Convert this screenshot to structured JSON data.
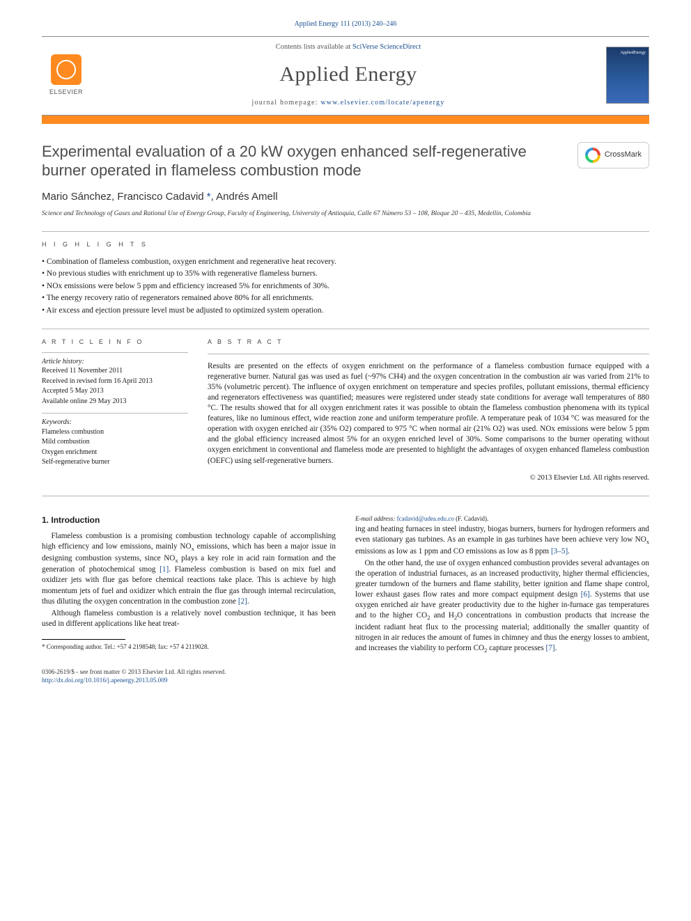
{
  "citation": "Applied Energy 111 (2013) 240–246",
  "header": {
    "contents_prefix": "Contents lists available at ",
    "contents_link": "SciVerse ScienceDirect",
    "journal": "Applied Energy",
    "homepage_prefix": "journal homepage: ",
    "homepage_url": "www.elsevier.com/locate/apenergy",
    "publisher": "ELSEVIER",
    "cover_label": "AppliedEnergy"
  },
  "crossmark_label": "CrossMark",
  "title": "Experimental evaluation of a 20 kW oxygen enhanced self-regenerative burner operated in flameless combustion mode",
  "authors_html": "Mario Sánchez, Francisco Cadavid *, Andrés Amell",
  "affiliation": "Science and Technology of Gases and Rational Use of Energy Group, Faculty of Engineering, University of Antioquia, Calle 67 Número 53 – 108, Bloque 20 – 435, Medellín, Colombia",
  "highlights_label": "H I G H L I G H T S",
  "highlights": [
    "Combination of flameless combustion, oxygen enrichment and regenerative heat recovery.",
    "No previous studies with enrichment up to 35% with regenerative flameless burners.",
    "NOx emissions were below 5 ppm and efficiency increased 5% for enrichments of 30%.",
    "The energy recovery ratio of regenerators remained above 80% for all enrichments.",
    "Air excess and ejection pressure level must be adjusted to optimized system operation."
  ],
  "article_info": {
    "header": "A R T I C L E   I N F O",
    "history_label": "Article history:",
    "history": [
      "Received 11 November 2011",
      "Received in revised form 16 April 2013",
      "Accepted 5 May 2013",
      "Available online 29 May 2013"
    ],
    "keywords_label": "Keywords:",
    "keywords": [
      "Flameless combustion",
      "Mild combustion",
      "Oxygen enrichment",
      "Self-regenerative burner"
    ]
  },
  "abstract": {
    "header": "A B S T R A C T",
    "text": "Results are presented on the effects of oxygen enrichment on the performance of a flameless combustion furnace equipped with a regenerative burner. Natural gas was used as fuel (~97% CH4) and the oxygen concentration in the combustion air was varied from 21% to 35% (volumetric percent). The influence of oxygen enrichment on temperature and species profiles, pollutant emissions, thermal efficiency and regenerators effectiveness was quantified; measures were registered under steady state conditions for average wall temperatures of 880 °C. The results showed that for all oxygen enrichment rates it was possible to obtain the flameless combustion phenomena with its typical features, like no luminous effect, wide reaction zone and uniform temperature profile. A temperature peak of 1034 °C was measured for the operation with oxygen enriched air (35% O2) compared to 975 °C when normal air (21% O2) was used. NOx emissions were below 5 ppm and the global efficiency increased almost 5% for an oxygen enriched level of 30%. Some comparisons to the burner operating without oxygen enrichment in conventional and flameless mode are presented to highlight the advantages of oxygen enhanced flameless combustion (OEFC) using self-regenerative burners.",
    "copyright": "© 2013 Elsevier Ltd. All rights reserved."
  },
  "body": {
    "section_number": "1.",
    "section_title": "Introduction",
    "p1": "Flameless combustion is a promising combustion technology capable of accomplishing high efficiency and low emissions, mainly NOx emissions, which has been a major issue in designing combustion systems, since NOx plays a key role in acid rain formation and the generation of photochemical smog [1]. Flameless combustion is based on mix fuel and oxidizer jets with flue gas before chemical reactions take place. This is achieve by high momentum jets of fuel and oxidizer which entrain the flue gas through internal recirculation, thus diluting the oxygen concentration in the combustion zone [2].",
    "p2": "Although flameless combustion is a relatively novel combustion technique, it has been used in different applications like heat treat-",
    "p3": "ing and heating furnaces in steel industry, biogas burners, burners for hydrogen reformers and even stationary gas turbines. As an example in gas turbines have been achieve very low NOx emissions as low as 1 ppm and CO emissions as low as 8 ppm [3–5].",
    "p4": "On the other hand, the use of oxygen enhanced combustion provides several advantages on the operation of industrial furnaces, as an increased productivity, higher thermal efficiencies, greater turndown of the burners and flame stability, better ignition and flame shape control, lower exhaust gases flow rates and more compact equipment design [6]. Systems that use oxygen enriched air have greater productivity due to the higher in-furnace gas temperatures and to the higher CO2 and H2O concentrations in combustion products that increase the incident radiant heat flux to the processing material; additionally the smaller quantity of nitrogen in air reduces the amount of fumes in chimney and thus the energy losses to ambient, and increases the viability to perform CO2 capture processes [7]."
  },
  "footnote": {
    "corr": "* Corresponding author. Tel.: +57 4 2198548; fax: +57 4 2119028.",
    "email_label": "E-mail address:",
    "email": "fcadavid@udea.edu.co",
    "email_suffix": "(F. Cadavid)."
  },
  "footer": {
    "line1": "0306-2619/$ - see front matter © 2013 Elsevier Ltd. All rights reserved.",
    "doi": "http://dx.doi.org/10.1016/j.apenergy.2013.05.009"
  },
  "colors": {
    "link": "#1a4f8f",
    "accent": "#ff8a1f",
    "text": "#1a1a1a",
    "title_gray": "#4d4d4d"
  }
}
